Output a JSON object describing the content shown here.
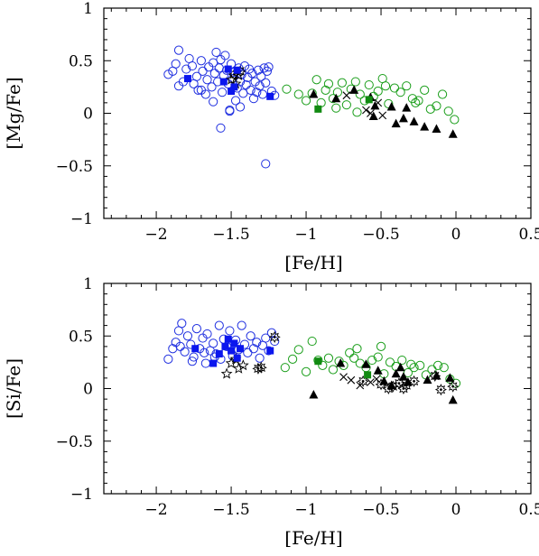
{
  "chart_data": [
    {
      "type": "scatter",
      "xlabel": "[Fe/H]",
      "ylabel": "[Mg/Fe]",
      "xlim": [
        -2.35,
        0.5
      ],
      "ylim": [
        -1,
        1
      ],
      "xticks": [
        -2,
        -1.5,
        -1,
        -0.5,
        0,
        0.5
      ],
      "xtick_labels": [
        "−2",
        "−1.5",
        "−1",
        "−0.5",
        "0",
        "0.5"
      ],
      "yticks": [
        -1,
        -0.5,
        0,
        0.5,
        1
      ],
      "ytick_labels": [
        "−1",
        "−0.5",
        "0",
        "0.5",
        "1"
      ],
      "grid": false,
      "series": [
        {
          "marker": "open-circle",
          "color": "#1f2fe0",
          "x": [
            -1.92,
            -1.89,
            -1.87,
            -1.85,
            -1.82,
            -1.8,
            -1.78,
            -1.76,
            -1.75,
            -1.73,
            -1.72,
            -1.7,
            -1.69,
            -1.67,
            -1.66,
            -1.65,
            -1.63,
            -1.62,
            -1.61,
            -1.6,
            -1.59,
            -1.58,
            -1.57,
            -1.56,
            -1.55,
            -1.54,
            -1.53,
            -1.52,
            -1.51,
            -1.5,
            -1.49,
            -1.48,
            -1.47,
            -1.46,
            -1.45,
            -1.44,
            -1.43,
            -1.42,
            -1.41,
            -1.4,
            -1.39,
            -1.38,
            -1.37,
            -1.36,
            -1.35,
            -1.34,
            -1.33,
            -1.32,
            -1.31,
            -1.3,
            -1.29,
            -1.28,
            -1.27,
            -1.26,
            -1.25,
            -1.23,
            -1.21,
            -1.57,
            -1.51,
            -1.27,
            -1.85,
            -1.7,
            -1.62,
            -1.44
          ],
          "y": [
            0.37,
            0.4,
            0.47,
            0.6,
            0.3,
            0.42,
            0.52,
            0.45,
            0.28,
            0.35,
            0.22,
            0.5,
            0.4,
            0.18,
            0.32,
            0.44,
            0.25,
            0.48,
            0.38,
            0.58,
            0.3,
            0.43,
            0.51,
            0.2,
            0.36,
            0.55,
            0.41,
            0.28,
            0.03,
            0.47,
            0.33,
            0.39,
            0.12,
            0.24,
            0.43,
            0.3,
            0.37,
            0.19,
            0.45,
            0.27,
            0.34,
            0.42,
            0.22,
            0.38,
            0.14,
            0.3,
            0.2,
            0.41,
            0.26,
            0.35,
            0.18,
            0.43,
            0.29,
            0.4,
            0.44,
            0.21,
            0.17,
            -0.14,
            0.02,
            -0.48,
            0.26,
            0.22,
            0.11,
            0.06
          ]
        },
        {
          "marker": "open-circle",
          "color": "#1a9e1a",
          "x": [
            -1.13,
            -1.05,
            -1.0,
            -0.96,
            -0.93,
            -0.9,
            -0.87,
            -0.85,
            -0.82,
            -0.79,
            -0.76,
            -0.73,
            -0.7,
            -0.67,
            -0.64,
            -0.61,
            -0.58,
            -0.55,
            -0.52,
            -0.49,
            -0.45,
            -0.41,
            -0.37,
            -0.33,
            -0.29,
            -0.25,
            -0.21,
            -0.17,
            -0.13,
            -0.09,
            -0.05,
            -0.01,
            -0.8,
            -0.66,
            -0.47,
            -0.27
          ],
          "y": [
            0.23,
            0.18,
            0.12,
            0.19,
            0.32,
            0.1,
            0.22,
            0.28,
            0.14,
            0.2,
            0.29,
            0.08,
            0.23,
            0.3,
            0.18,
            0.12,
            0.27,
            0.16,
            0.21,
            0.33,
            0.09,
            0.24,
            0.2,
            0.26,
            0.14,
            0.12,
            0.22,
            0.04,
            0.07,
            0.18,
            0.02,
            -0.06,
            0.05,
            0.01,
            0.26,
            0.1
          ]
        },
        {
          "marker": "filled-square",
          "color": "#0b16ee",
          "x": [
            -1.79,
            -1.55,
            -1.52,
            -1.5,
            -1.48,
            -1.46,
            -1.24
          ],
          "y": [
            0.33,
            0.3,
            0.42,
            0.21,
            0.25,
            0.41,
            0.16
          ]
        },
        {
          "marker": "filled-square",
          "color": "#118a11",
          "x": [
            -0.92,
            -0.58
          ],
          "y": [
            0.04,
            0.13
          ]
        },
        {
          "marker": "filled-triangle",
          "color": "#000000",
          "x": [
            -0.95,
            -0.8,
            -0.68,
            -0.57,
            -0.54,
            -0.43,
            -0.4,
            -0.35,
            -0.33,
            -0.28,
            -0.21,
            -0.13,
            -0.02,
            -0.55
          ],
          "y": [
            0.18,
            0.14,
            0.22,
            0.15,
            0.07,
            0.06,
            -0.1,
            -0.05,
            0.05,
            -0.08,
            -0.13,
            -0.15,
            -0.2,
            -0.03
          ]
        },
        {
          "marker": "cross",
          "color": "#000000",
          "x": [
            -0.73,
            -0.6,
            -0.57,
            -0.52,
            -0.49
          ],
          "y": [
            0.17,
            0.03,
            0.0,
            0.1,
            -0.02
          ]
        },
        {
          "marker": "open-star",
          "color": "#000000",
          "x": [
            -1.5,
            -1.47,
            -1.45
          ],
          "y": [
            0.32,
            0.28,
            0.36
          ]
        },
        {
          "marker": "dot-star",
          "color": "#000000",
          "x": [
            -1.48,
            -1.44
          ],
          "y": [
            0.37,
            0.4
          ]
        }
      ]
    },
    {
      "type": "scatter",
      "xlabel": "[Fe/H]",
      "ylabel": "[Si/Fe]",
      "xlim": [
        -2.35,
        0.5
      ],
      "ylim": [
        -1,
        1
      ],
      "xticks": [
        -2,
        -1.5,
        -1,
        -0.5,
        0,
        0.5
      ],
      "xtick_labels": [
        "−2",
        "−1.5",
        "−1",
        "−0.5",
        "0",
        "0.5"
      ],
      "yticks": [
        -1,
        -0.5,
        0,
        0.5,
        1
      ],
      "ytick_labels": [
        "−1",
        "−0.5",
        "0",
        "0.5",
        "1"
      ],
      "grid": false,
      "series": [
        {
          "marker": "open-circle",
          "color": "#1f2fe0",
          "x": [
            -1.92,
            -1.89,
            -1.87,
            -1.85,
            -1.83,
            -1.81,
            -1.79,
            -1.77,
            -1.75,
            -1.73,
            -1.71,
            -1.69,
            -1.67,
            -1.66,
            -1.64,
            -1.62,
            -1.6,
            -1.58,
            -1.57,
            -1.55,
            -1.53,
            -1.51,
            -1.49,
            -1.47,
            -1.45,
            -1.43,
            -1.41,
            -1.39,
            -1.37,
            -1.35,
            -1.33,
            -1.31,
            -1.29,
            -1.27,
            -1.25,
            -1.23,
            -1.21,
            -1.84,
            -1.76,
            -1.68,
            -1.61
          ],
          "y": [
            0.28,
            0.38,
            0.44,
            0.55,
            0.62,
            0.35,
            0.5,
            0.42,
            0.3,
            0.57,
            0.38,
            0.48,
            0.24,
            0.52,
            0.36,
            0.43,
            0.33,
            0.6,
            0.28,
            0.47,
            0.4,
            0.55,
            0.31,
            0.46,
            0.37,
            0.6,
            0.42,
            0.34,
            0.5,
            0.38,
            0.44,
            0.29,
            0.41,
            0.48,
            0.36,
            0.53,
            0.45,
            0.4,
            0.26,
            0.34,
            0.3
          ]
        },
        {
          "marker": "open-circle",
          "color": "#1a9e1a",
          "x": [
            -1.14,
            -1.09,
            -1.05,
            -1.0,
            -0.96,
            -0.92,
            -0.89,
            -0.85,
            -0.82,
            -0.78,
            -0.75,
            -0.71,
            -0.68,
            -0.64,
            -0.6,
            -0.56,
            -0.52,
            -0.48,
            -0.44,
            -0.4,
            -0.36,
            -0.32,
            -0.28,
            -0.24,
            -0.2,
            -0.16,
            -0.12,
            -0.08,
            -0.04,
            0.0,
            -0.66,
            -0.5,
            -0.3
          ],
          "y": [
            0.2,
            0.28,
            0.37,
            0.16,
            0.45,
            0.27,
            0.22,
            0.29,
            0.18,
            0.26,
            0.22,
            0.34,
            0.29,
            0.24,
            0.2,
            0.27,
            0.3,
            0.14,
            0.25,
            0.21,
            0.27,
            0.15,
            0.2,
            0.22,
            0.13,
            0.18,
            0.22,
            0.2,
            0.09,
            0.05,
            0.38,
            0.4,
            0.23
          ]
        },
        {
          "marker": "filled-square",
          "color": "#0b16ee",
          "x": [
            -1.74,
            -1.62,
            -1.58,
            -1.54,
            -1.52,
            -1.5,
            -1.48,
            -1.46,
            -1.44,
            -1.24
          ],
          "y": [
            0.38,
            0.24,
            0.33,
            0.4,
            0.47,
            0.36,
            0.43,
            0.29,
            0.38,
            0.36
          ]
        },
        {
          "marker": "filled-square",
          "color": "#118a11",
          "x": [
            -0.92,
            -0.59
          ],
          "y": [
            0.26,
            0.13
          ]
        },
        {
          "marker": "filled-triangle",
          "color": "#000000",
          "x": [
            -0.95,
            -0.77,
            -0.6,
            -0.52,
            -0.48,
            -0.43,
            -0.4,
            -0.37,
            -0.35,
            -0.32,
            -0.19,
            -0.13,
            -0.04,
            -0.02
          ],
          "y": [
            -0.06,
            0.24,
            0.23,
            0.17,
            0.07,
            0.03,
            0.14,
            0.2,
            0.11,
            0.06,
            0.08,
            0.12,
            0.1,
            -0.11
          ]
        },
        {
          "marker": "cross",
          "color": "#000000",
          "x": [
            -0.75,
            -0.7,
            -0.64,
            -0.57,
            -0.53
          ],
          "y": [
            0.11,
            0.08,
            0.03,
            0.06,
            0.09
          ]
        },
        {
          "marker": "open-star",
          "color": "#000000",
          "x": [
            -1.53,
            -1.5,
            -1.47,
            -1.45,
            -1.42
          ],
          "y": [
            0.14,
            0.24,
            0.28,
            0.19,
            0.22
          ]
        },
        {
          "marker": "dot-star",
          "color": "#000000",
          "x": [
            -1.32,
            -1.3,
            -1.21,
            -0.62,
            -0.5,
            -0.45,
            -0.42,
            -0.38,
            -0.35,
            -0.33,
            -0.28,
            -0.14,
            -0.1,
            -0.02
          ],
          "y": [
            0.19,
            0.2,
            0.49,
            0.07,
            0.04,
            0.0,
            0.02,
            0.05,
            0.0,
            0.03,
            0.07,
            0.12,
            -0.01,
            0.02
          ]
        }
      ]
    }
  ]
}
